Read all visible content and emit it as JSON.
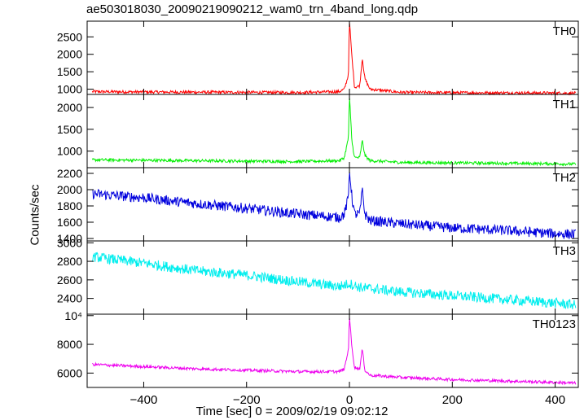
{
  "chart_data": {
    "type": "line",
    "title": "ae503018030_20090219090212_wam0_trn_4band_long.qdp",
    "xlabel": "Time [sec] 0 = 2009/02/19 09:02:12",
    "ylabel": "Counts/sec",
    "xlim": [
      -510,
      445
    ],
    "xticks": [
      -400,
      -200,
      0,
      200,
      400
    ],
    "grid": false,
    "panels": [
      {
        "name": "TH0",
        "color": "#ff0000",
        "ylim": [
          850,
          2950
        ],
        "yticks": [
          1000,
          1500,
          2000,
          2500
        ],
        "x": [
          -500,
          -400,
          -300,
          -200,
          -100,
          -20,
          -10,
          -2,
          0,
          5,
          10,
          20,
          25,
          30,
          40,
          100,
          200,
          300,
          400,
          440
        ],
        "y": [
          930,
          920,
          915,
          910,
          905,
          930,
          1000,
          1400,
          2950,
          1900,
          1050,
          1100,
          1900,
          1300,
          1000,
          910,
          900,
          895,
          890,
          885
        ]
      },
      {
        "name": "TH1",
        "color": "#00ee00",
        "ylim": [
          620,
          2300
        ],
        "yticks": [
          1000,
          1500,
          2000
        ],
        "x": [
          -500,
          -400,
          -300,
          -200,
          -100,
          -20,
          -10,
          -2,
          0,
          5,
          10,
          20,
          25,
          30,
          40,
          100,
          200,
          300,
          400,
          440
        ],
        "y": [
          800,
          790,
          780,
          770,
          760,
          780,
          850,
          1300,
          2250,
          1200,
          850,
          850,
          1250,
          900,
          780,
          740,
          730,
          720,
          710,
          700
        ],
        "yticklabels": [
          "1000",
          "1500",
          "2000"
        ]
      },
      {
        "name": "TH2",
        "color": "#0000dd",
        "ylim": [
          1370,
          2270
        ],
        "yticks": [
          1400,
          1600,
          1800,
          2000,
          2200
        ],
        "x": [
          -500,
          -400,
          -300,
          -200,
          -100,
          -20,
          -10,
          -2,
          0,
          5,
          10,
          20,
          25,
          30,
          40,
          100,
          200,
          300,
          400,
          440
        ],
        "y": [
          1950,
          1900,
          1830,
          1770,
          1700,
          1660,
          1700,
          1900,
          2250,
          1900,
          1700,
          1700,
          2000,
          1700,
          1620,
          1580,
          1530,
          1500,
          1460,
          1450
        ]
      },
      {
        "name": "TH3",
        "color": "#00eeee",
        "ylim": [
          2230,
          3020
        ],
        "yticks": [
          2400,
          2600,
          2800,
          3000
        ],
        "x": [
          -500,
          -400,
          -300,
          -200,
          -100,
          -20,
          0,
          20,
          100,
          200,
          300,
          400,
          440
        ],
        "y": [
          2850,
          2780,
          2700,
          2650,
          2580,
          2530,
          2560,
          2520,
          2470,
          2430,
          2390,
          2350,
          2330
        ]
      },
      {
        "name": "TH0123",
        "color": "#ee00ee",
        "ylim": [
          5000,
          10100
        ],
        "yticks": [
          6000,
          8000,
          10000
        ],
        "yticklabels": [
          "6000",
          "8000",
          "10⁴"
        ],
        "x": [
          -500,
          -400,
          -300,
          -200,
          -100,
          -20,
          -10,
          -2,
          0,
          5,
          10,
          20,
          25,
          30,
          40,
          100,
          200,
          300,
          400,
          440
        ],
        "y": [
          6600,
          6450,
          6300,
          6200,
          6100,
          6100,
          6300,
          7600,
          10000,
          7700,
          6400,
          6300,
          7700,
          6200,
          5850,
          5700,
          5550,
          5450,
          5350,
          5300
        ]
      }
    ]
  }
}
